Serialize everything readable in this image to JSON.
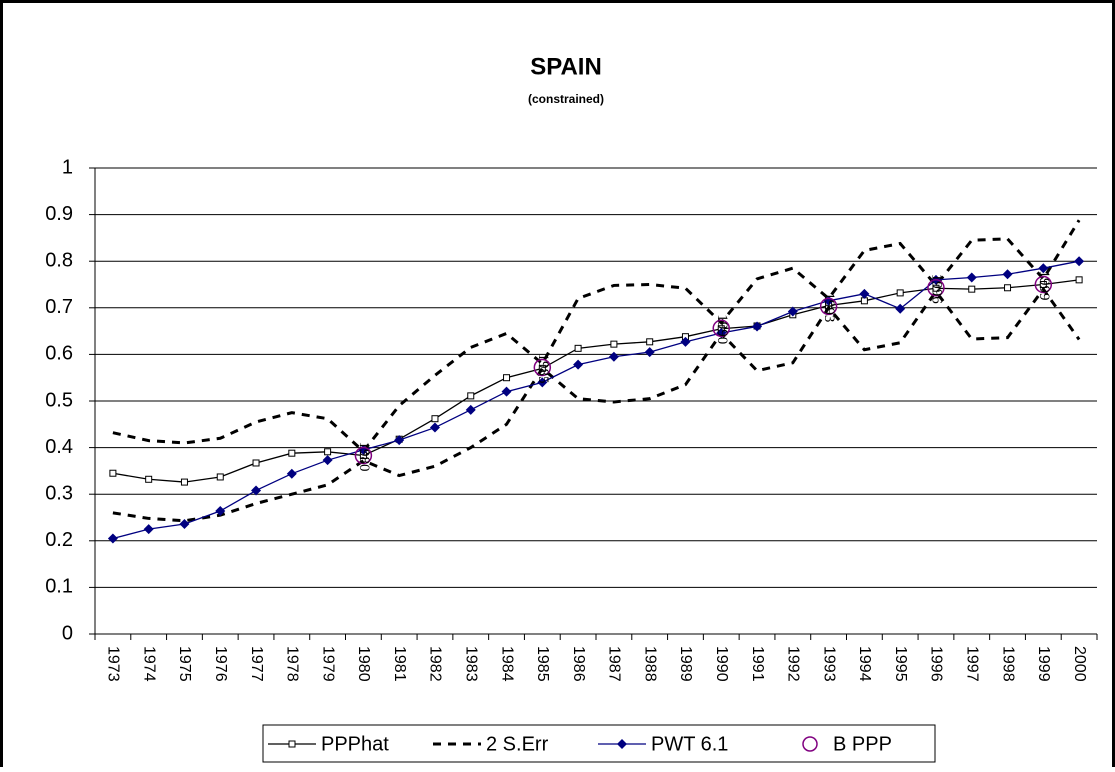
{
  "chart_data": {
    "type": "line",
    "title": "SPAIN",
    "subtitle": "(constrained)",
    "categories": [
      "1973",
      "1974",
      "1975",
      "1976",
      "1977",
      "1978",
      "1979",
      "1980",
      "1981",
      "1982",
      "1983",
      "1984",
      "1985",
      "1986",
      "1987",
      "1988",
      "1989",
      "1990",
      "1991",
      "1992",
      "1993",
      "1994",
      "1995",
      "1996",
      "1997",
      "1998",
      "1999",
      "2000"
    ],
    "ylim": [
      0,
      1
    ],
    "yticks": [
      0,
      0.1,
      0.2,
      0.3,
      0.4,
      0.5,
      0.6,
      0.7,
      0.8,
      0.9,
      1
    ],
    "grid": true,
    "series": [
      {
        "name": "PPPhat",
        "color": "#000000",
        "marker": "square",
        "dash": false,
        "values": [
          0.345,
          0.332,
          0.326,
          0.337,
          0.367,
          0.388,
          0.391,
          0.383,
          0.418,
          0.462,
          0.511,
          0.55,
          0.57,
          0.613,
          0.622,
          0.627,
          0.638,
          0.655,
          0.661,
          0.685,
          0.705,
          0.715,
          0.732,
          0.742,
          0.74,
          0.743,
          0.75,
          0.76
        ]
      },
      {
        "name": "2 S.Err",
        "color": "#000000",
        "marker": "none",
        "dash": true,
        "values": [
          0.432,
          0.415,
          0.41,
          0.42,
          0.455,
          0.475,
          0.462,
          0.392,
          0.49,
          0.555,
          0.615,
          0.645,
          0.58,
          0.72,
          0.748,
          0.75,
          0.742,
          0.668,
          0.762,
          0.785,
          0.72,
          0.823,
          0.838,
          0.748,
          0.845,
          0.848,
          0.762,
          0.888
        ],
        "lower": [
          0.26,
          0.248,
          0.243,
          0.255,
          0.28,
          0.3,
          0.32,
          0.372,
          0.34,
          0.36,
          0.4,
          0.45,
          0.57,
          0.505,
          0.498,
          0.505,
          0.535,
          0.645,
          0.565,
          0.582,
          0.7,
          0.61,
          0.625,
          0.735,
          0.633,
          0.636,
          0.74,
          0.632
        ]
      },
      {
        "name": "PWT 6.1",
        "color": "#000080",
        "marker": "diamond",
        "dash": false,
        "values": [
          0.205,
          0.225,
          0.236,
          0.264,
          0.308,
          0.344,
          0.373,
          0.395,
          0.416,
          0.443,
          0.481,
          0.52,
          0.54,
          0.578,
          0.595,
          0.605,
          0.627,
          0.646,
          0.66,
          0.692,
          0.715,
          0.73,
          0.698,
          0.76,
          0.765,
          0.772,
          0.785,
          0.8
        ]
      },
      {
        "name": "B PPP",
        "color": "#800080",
        "marker": "circle",
        "dash": false,
        "labeled": true,
        "values": [
          null,
          null,
          null,
          null,
          null,
          null,
          null,
          0.383,
          null,
          null,
          null,
          null,
          0.572,
          null,
          null,
          null,
          null,
          0.656,
          null,
          null,
          0.703,
          null,
          null,
          0.743,
          null,
          null,
          0.75,
          null
        ]
      }
    ]
  }
}
